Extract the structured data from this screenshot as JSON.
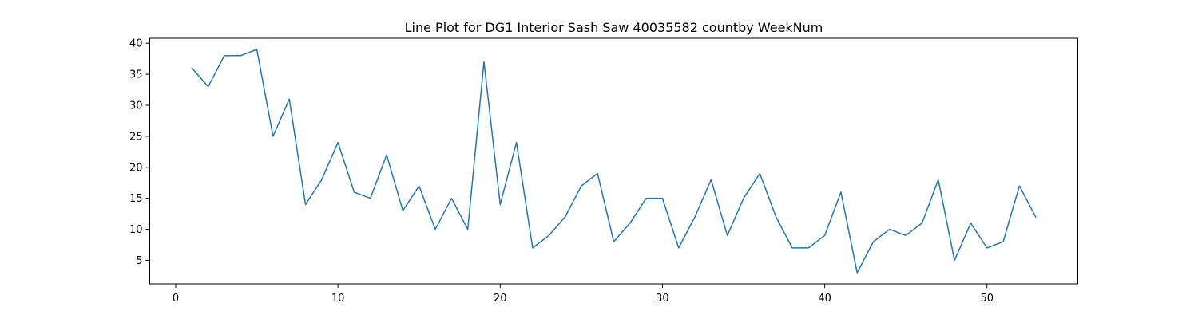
{
  "chart_data": {
    "type": "line",
    "title": "Line Plot for DG1 Interior Sash Saw 40035582 countby WeekNum",
    "xlabel": "",
    "ylabel": "",
    "xlim": [
      -1.6,
      55.6
    ],
    "ylim": [
      1.2,
      40.8
    ],
    "xticks": [
      0,
      10,
      20,
      30,
      40,
      50
    ],
    "yticks": [
      5,
      10,
      15,
      20,
      25,
      30,
      35,
      40
    ],
    "grid": false,
    "legend": "none",
    "series": [
      {
        "color": "#1f77b4",
        "x": [
          1,
          2,
          3,
          4,
          5,
          6,
          7,
          8,
          9,
          10,
          11,
          12,
          13,
          14,
          15,
          16,
          17,
          18,
          19,
          20,
          21,
          22,
          23,
          24,
          25,
          26,
          27,
          28,
          29,
          30,
          31,
          32,
          33,
          34,
          35,
          36,
          37,
          38,
          39,
          40,
          41,
          42,
          43,
          44,
          45,
          46,
          47,
          48,
          49,
          50,
          51,
          52,
          53
        ],
        "y": [
          36,
          33,
          38,
          38,
          39,
          25,
          31,
          14,
          18,
          24,
          16,
          15,
          22,
          13,
          17,
          10,
          15,
          10,
          37,
          14,
          24,
          7,
          9,
          12,
          17,
          19,
          8,
          11,
          15,
          15,
          7,
          12,
          18,
          9,
          15,
          19,
          12,
          7,
          7,
          9,
          16,
          3,
          8,
          10,
          9,
          11,
          18,
          5,
          11,
          7,
          8,
          17,
          12
        ]
      }
    ]
  }
}
